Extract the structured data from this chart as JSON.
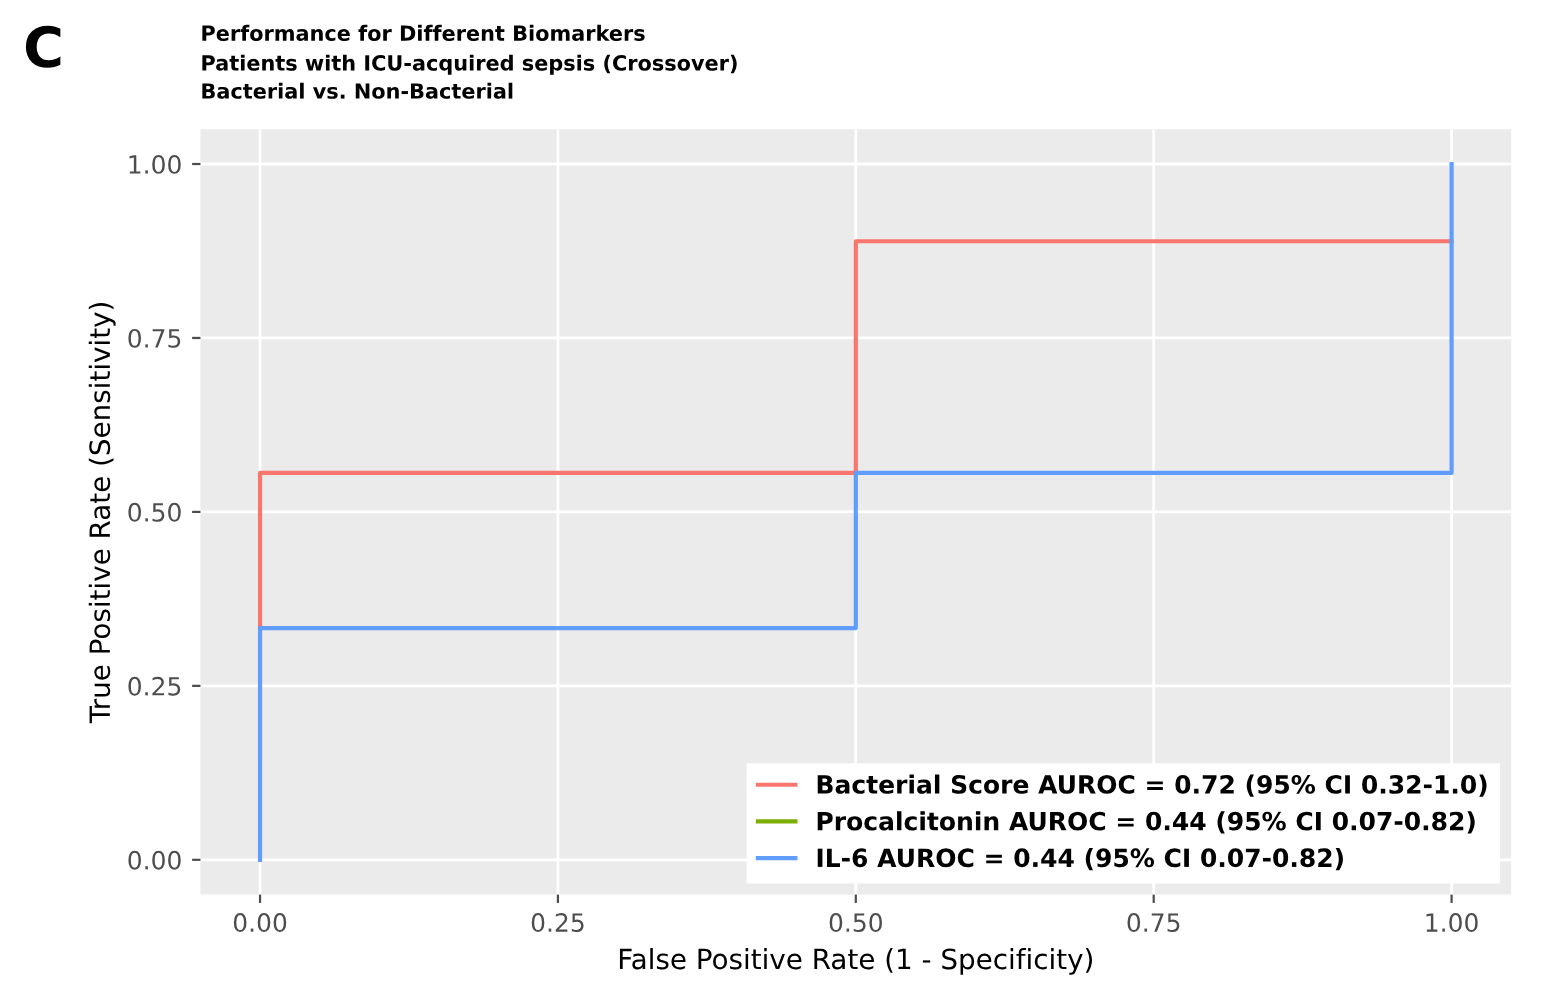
{
  "chart_data": {
    "type": "line",
    "title": "Performance for Different Biomarkers",
    "subtitle": "Patients with ICU-acquired sepsis (Crossover)\nBacterial vs. Non-Bacterial",
    "annotations": [
      "C"
    ],
    "xlabel": "False Positive Rate (1 - Specificity)",
    "ylabel": "True Positive Rate (Sensitivity)",
    "series": [
      {
        "name": "Bacterial Score AUROC = 0.72 (95% CI 0.32-1.0)",
        "color": "#f8766d",
        "x": [
          0,
          0,
          0.5,
          0.5,
          1
        ],
        "values": [
          0.333,
          0.556,
          0.556,
          0.889,
          0.889
        ]
      },
      {
        "name": "Procalcitonin AUROC = 0.44 (95% CI 0.07-0.82)",
        "color": "#7cae00"
      },
      {
        "name": "IL-6 AUROC = 0.44 (95% CI 0.07-0.82)",
        "color": "#619cff",
        "x": [
          0,
          0,
          0.5,
          0.5,
          1,
          1
        ],
        "values": [
          0,
          0.333,
          0.333,
          0.556,
          0.556,
          1
        ]
      }
    ],
    "xlim": [
      -0.05,
      1.05
    ],
    "ylim": [
      -0.05,
      1.05
    ],
    "xticks": [
      {
        "value": 0,
        "label": "0.00"
      },
      {
        "value": 0.25,
        "label": "0.25"
      },
      {
        "value": 0.5,
        "label": "0.50"
      },
      {
        "value": 0.75,
        "label": "0.75"
      },
      {
        "value": 1,
        "label": "1.00"
      }
    ],
    "yticks": [
      {
        "value": 0,
        "label": "0.00"
      },
      {
        "value": 0.25,
        "label": "0.25"
      },
      {
        "value": 0.5,
        "label": "0.50"
      },
      {
        "value": 0.75,
        "label": "0.75"
      },
      {
        "value": 1,
        "label": "1.00"
      }
    ],
    "grid": true,
    "legend": "bottom right",
    "marker": "none",
    "line_style": "solid"
  }
}
